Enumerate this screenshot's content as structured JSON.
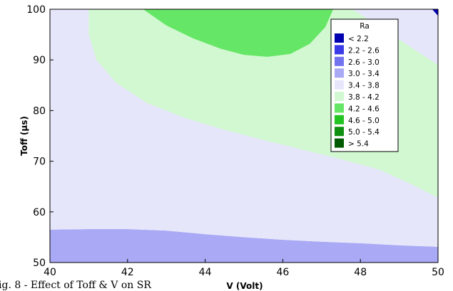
{
  "chart_data": {
    "type": "contour",
    "title": "",
    "xlabel": "V (Volt)",
    "ylabel": "Toff (µs)",
    "xlim": [
      40,
      50
    ],
    "ylim": [
      50,
      100
    ],
    "x_ticks": [
      "40",
      "42",
      "44",
      "46",
      "48",
      "50"
    ],
    "y_ticks": [
      "50",
      "60",
      "70",
      "80",
      "90",
      "100"
    ],
    "legend": {
      "title": "Ra",
      "placement": "top-right",
      "entries": [
        {
          "label": "< 2.2",
          "color": "#0000b0"
        },
        {
          "label": "2.2 - 2.6",
          "color": "#3b3be8"
        },
        {
          "label": "2.6 - 3.0",
          "color": "#7373f0"
        },
        {
          "label": "3.0 - 3.4",
          "color": "#a9a9f5"
        },
        {
          "label": "3.4 - 3.8",
          "color": "#e6e6fa"
        },
        {
          "label": "3.8 - 4.2",
          "color": "#d2f8d2"
        },
        {
          "label": "4.2 - 4.6",
          "color": "#66e666"
        },
        {
          "label": "4.6 - 5.0",
          "color": "#22c422"
        },
        {
          "label": "5.0 - 5.4",
          "color": "#109010"
        },
        {
          "label": "> 5.4",
          "color": "#005a00"
        }
      ]
    },
    "regions": [
      {
        "band": "3.0 - 3.4",
        "color": "#a9a9f5",
        "boundary": [
          [
            40,
            50
          ],
          [
            40,
            56.5
          ],
          [
            41,
            56.6
          ],
          [
            42,
            56.6
          ],
          [
            43,
            56.3
          ],
          [
            44,
            55.6
          ],
          [
            45,
            55
          ],
          [
            46,
            54.5
          ],
          [
            47,
            54.1
          ],
          [
            48,
            53.8
          ],
          [
            49,
            53.4
          ],
          [
            50,
            53.1
          ],
          [
            50,
            50
          ]
        ]
      },
      {
        "band": "3.4 - 3.8",
        "color": "#e6e6fa",
        "boundary": [
          [
            40,
            56.5
          ],
          [
            40,
            100
          ],
          [
            50,
            100
          ],
          [
            50,
            53.1
          ],
          [
            49,
            53.4
          ],
          [
            48,
            53.8
          ],
          [
            47,
            54.1
          ],
          [
            46,
            54.5
          ],
          [
            45,
            55
          ],
          [
            44,
            55.6
          ],
          [
            43,
            56.3
          ],
          [
            42,
            56.6
          ],
          [
            41,
            56.6
          ]
        ]
      },
      {
        "band": "3.8 - 4.2",
        "color": "#d2f8d2",
        "boundary": [
          [
            41.0,
            100
          ],
          [
            41.0,
            95
          ],
          [
            41.2,
            90
          ],
          [
            41.7,
            85.5
          ],
          [
            42.5,
            81.5
          ],
          [
            43.5,
            78.5
          ],
          [
            44.5,
            76.2
          ],
          [
            45.5,
            74.2
          ],
          [
            46.5,
            72.3
          ],
          [
            47.5,
            70.4
          ],
          [
            48.5,
            68.3
          ],
          [
            49.3,
            65.5
          ],
          [
            50,
            62.8
          ],
          [
            50,
            89
          ],
          [
            49.2,
            93
          ],
          [
            48.5,
            96.5
          ],
          [
            47.8,
            100
          ]
        ]
      },
      {
        "band": "4.2 - 4.6",
        "color": "#66e666",
        "boundary": [
          [
            42.4,
            100
          ],
          [
            43,
            96.8
          ],
          [
            43.7,
            94.2
          ],
          [
            44.4,
            92.2
          ],
          [
            45,
            91
          ],
          [
            45.6,
            90.6
          ],
          [
            46.2,
            91.2
          ],
          [
            46.7,
            93.2
          ],
          [
            47.1,
            96.5
          ],
          [
            47.3,
            100
          ]
        ]
      },
      {
        "band": "< 2.2",
        "color": "#0000b0",
        "boundary": [
          [
            49.85,
            100
          ],
          [
            50,
            98.7
          ],
          [
            50,
            100
          ]
        ]
      }
    ],
    "grid": false
  },
  "caption": "ig. 8 - Effect of Toff & V on SR"
}
